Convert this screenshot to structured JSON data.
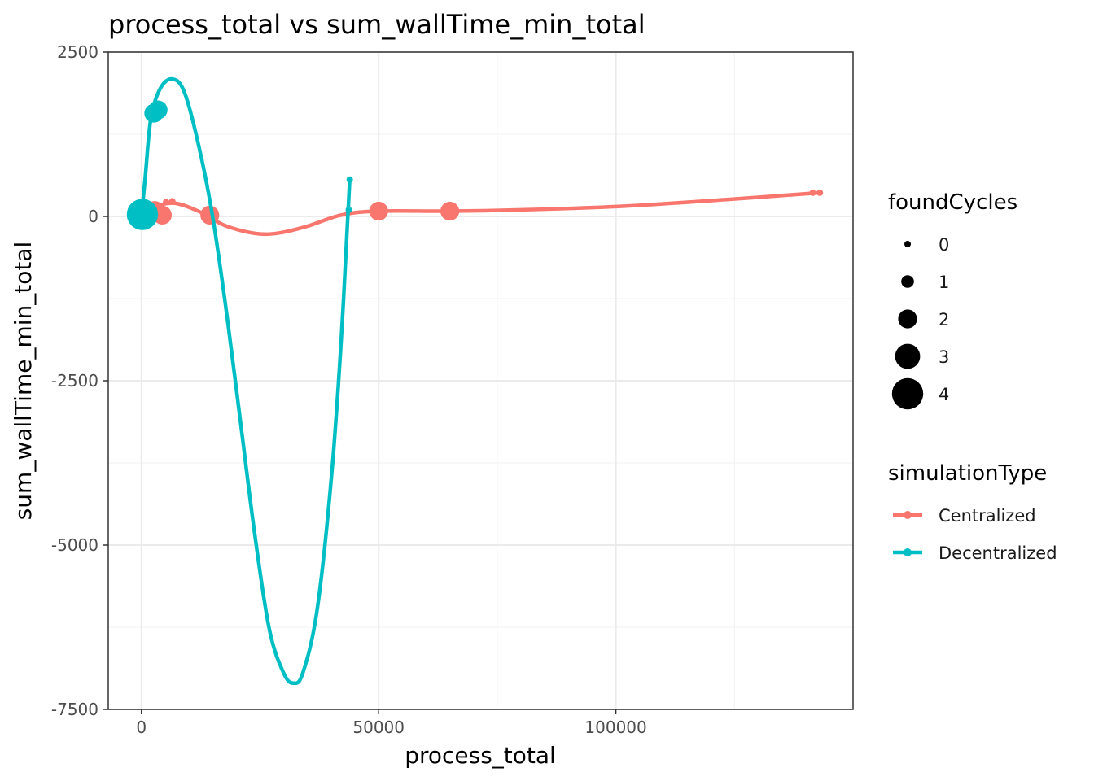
{
  "chart_data": {
    "type": "scatter",
    "title": "process_total  vs  sum_wallTime_min_total",
    "xlabel": "process_total",
    "ylabel": "sum_wallTime_min_total",
    "xlim": [
      -7000,
      150000
    ],
    "ylim": [
      -7500,
      2500
    ],
    "x_ticks": [
      0,
      50000,
      100000
    ],
    "x_tick_labels": [
      "0",
      "50000",
      "100000"
    ],
    "y_ticks": [
      2500,
      0,
      -2500,
      -5000,
      -7500
    ],
    "y_tick_labels": [
      "2500",
      "0",
      "-2500",
      "-5000",
      "-7500"
    ],
    "grid": true,
    "legend_position": "right",
    "size_legend": {
      "title": "foundCycles",
      "entries": [
        "0",
        "1",
        "2",
        "3",
        "4"
      ]
    },
    "color_legend": {
      "title": "simulationType",
      "entries": [
        "Centralized",
        "Decentralized"
      ]
    },
    "series": [
      {
        "name": "Centralized",
        "color": "#F8766D",
        "points": [
          {
            "x": 200,
            "y": 20,
            "foundCycles": 3
          },
          {
            "x": 1500,
            "y": 60,
            "foundCycles": 2
          },
          {
            "x": 2800,
            "y": 90,
            "foundCycles": 2
          },
          {
            "x": 4400,
            "y": 20,
            "foundCycles": 2
          },
          {
            "x": 5200,
            "y": 220,
            "foundCycles": 0
          },
          {
            "x": 6500,
            "y": 230,
            "foundCycles": 0
          },
          {
            "x": 14400,
            "y": 20,
            "foundCycles": 2
          },
          {
            "x": 50000,
            "y": 80,
            "foundCycles": 2
          },
          {
            "x": 65000,
            "y": 80,
            "foundCycles": 2
          },
          {
            "x": 141500,
            "y": 360,
            "foundCycles": 0
          },
          {
            "x": 143000,
            "y": 360,
            "foundCycles": 0
          }
        ],
        "smooth": [
          {
            "x": 0,
            "y": 0
          },
          {
            "x": 3000,
            "y": 150
          },
          {
            "x": 7000,
            "y": 200
          },
          {
            "x": 12000,
            "y": 80
          },
          {
            "x": 18000,
            "y": -150
          },
          {
            "x": 26000,
            "y": -270
          },
          {
            "x": 34000,
            "y": -170
          },
          {
            "x": 42000,
            "y": 20
          },
          {
            "x": 50000,
            "y": 80
          },
          {
            "x": 65000,
            "y": 80
          },
          {
            "x": 80000,
            "y": 100
          },
          {
            "x": 100000,
            "y": 150
          },
          {
            "x": 120000,
            "y": 240
          },
          {
            "x": 143000,
            "y": 360
          }
        ]
      },
      {
        "name": "Decentralized",
        "color": "#00BFC4",
        "points": [
          {
            "x": 200,
            "y": 30,
            "foundCycles": 4
          },
          {
            "x": 2600,
            "y": 1570,
            "foundCycles": 2
          },
          {
            "x": 3500,
            "y": 1620,
            "foundCycles": 2
          },
          {
            "x": 43700,
            "y": 100,
            "foundCycles": 0
          },
          {
            "x": 43900,
            "y": 560,
            "foundCycles": 0
          }
        ],
        "smooth": [
          {
            "x": 0,
            "y": 0
          },
          {
            "x": 800,
            "y": 600
          },
          {
            "x": 2000,
            "y": 1500
          },
          {
            "x": 4000,
            "y": 1950
          },
          {
            "x": 6500,
            "y": 2090
          },
          {
            "x": 9000,
            "y": 1900
          },
          {
            "x": 12000,
            "y": 1100
          },
          {
            "x": 15000,
            "y": 0
          },
          {
            "x": 18000,
            "y": -1500
          },
          {
            "x": 21000,
            "y": -3200
          },
          {
            "x": 24000,
            "y": -4900
          },
          {
            "x": 27000,
            "y": -6300
          },
          {
            "x": 30000,
            "y": -6950
          },
          {
            "x": 32000,
            "y": -7100
          },
          {
            "x": 34000,
            "y": -6950
          },
          {
            "x": 37000,
            "y": -6000
          },
          {
            "x": 40000,
            "y": -4000
          },
          {
            "x": 42000,
            "y": -2000
          },
          {
            "x": 43500,
            "y": 0
          },
          {
            "x": 43900,
            "y": 560
          }
        ]
      }
    ]
  }
}
